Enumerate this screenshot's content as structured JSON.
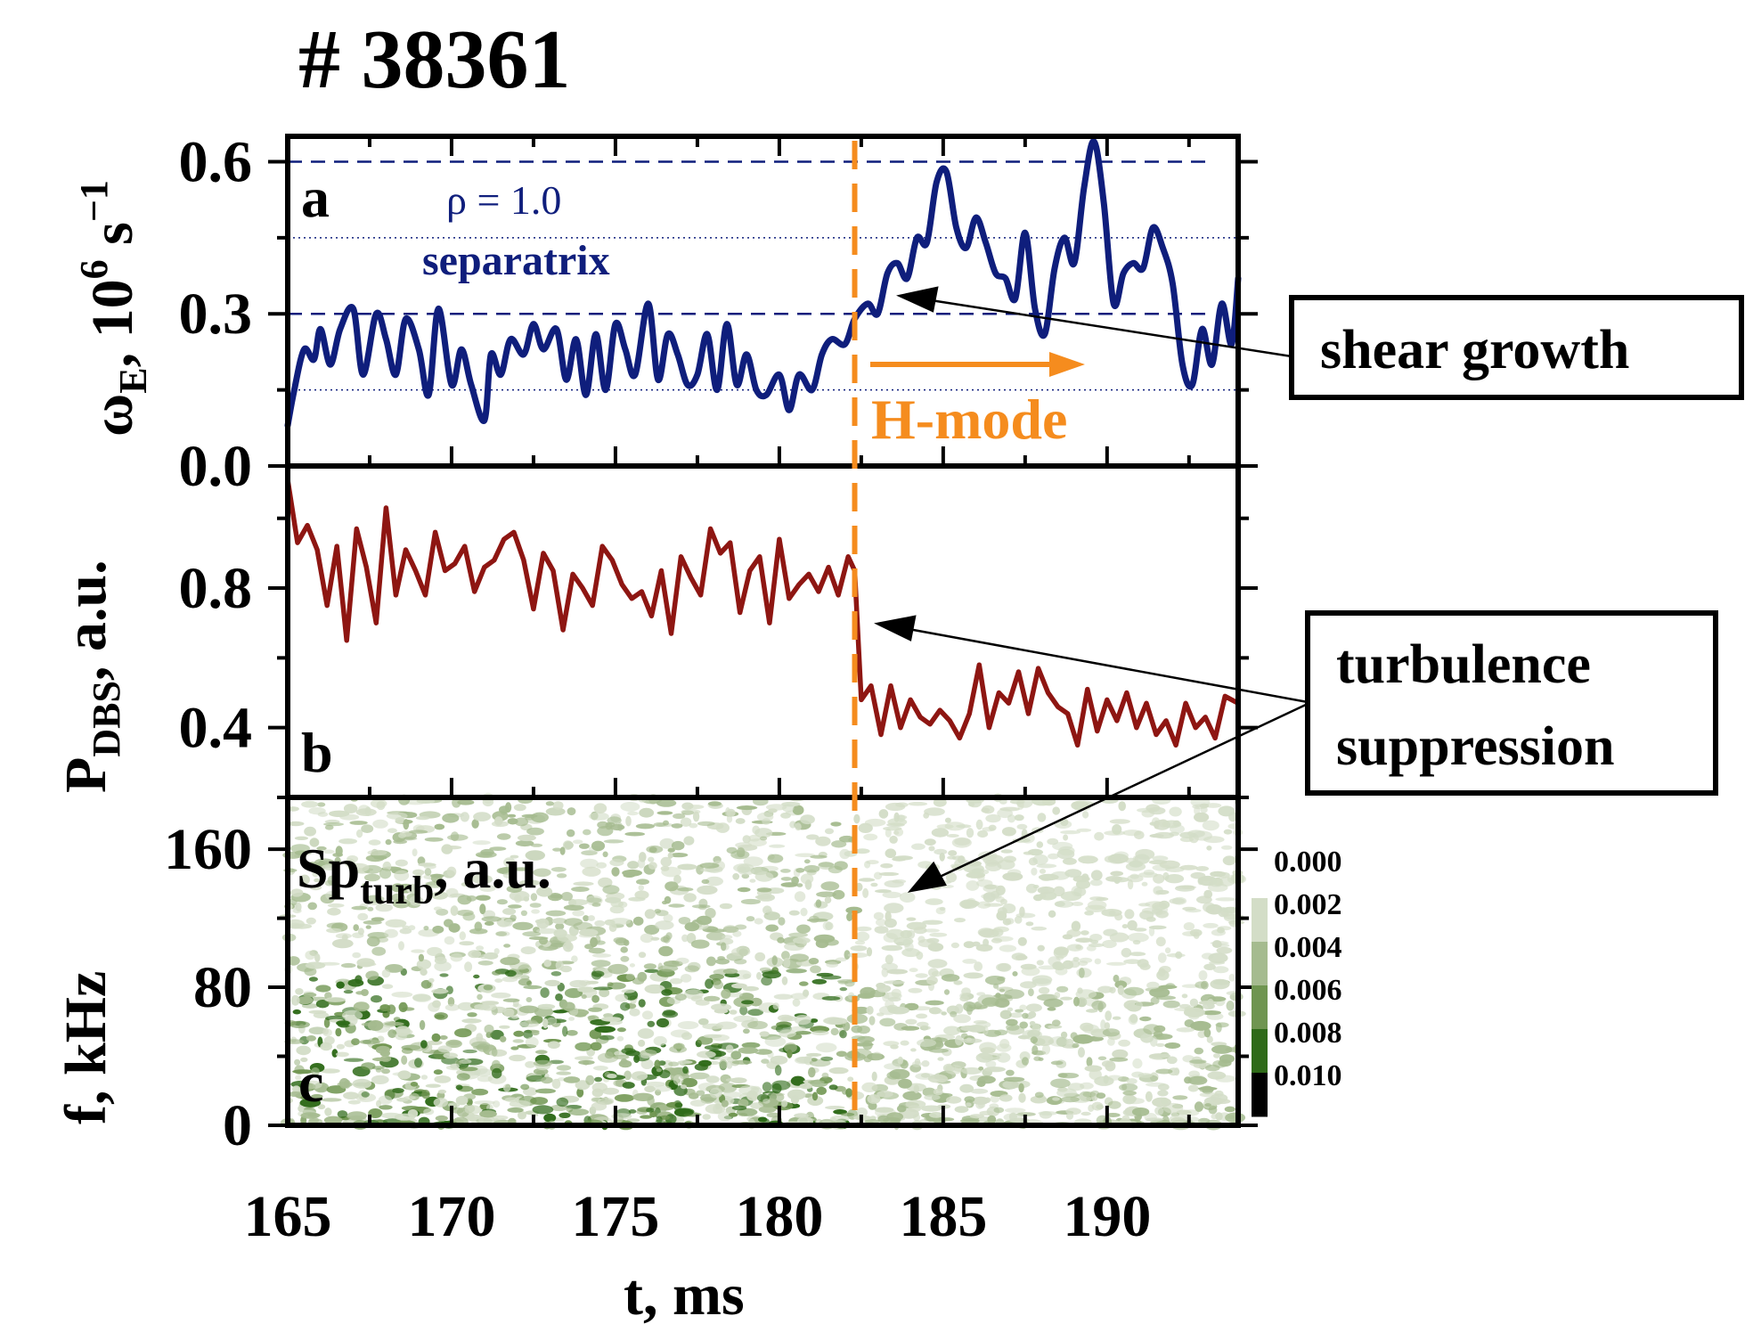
{
  "title": "# 38361",
  "colors": {
    "omega": "#0f1e7c",
    "pdbs": "#8e1612",
    "hmode": "#f58c1e",
    "axis": "#000000",
    "spectrogram_palette": [
      "#ffffff",
      "#d3ddc7",
      "#a5bb8f",
      "#6f9550",
      "#2e6a18",
      "#000000"
    ]
  },
  "x_axis": {
    "label": "t, ms",
    "ticks": [
      "165",
      "170",
      "175",
      "180",
      "185",
      "190"
    ],
    "range": [
      165,
      194
    ]
  },
  "panels": {
    "a": {
      "letter": "a",
      "ylabel_main": "ω",
      "ylabel_sub": "E",
      "ylabel_rest": ", 10",
      "ylabel_sup": "6",
      "ylabel_unit": " s",
      "ylabel_unit_sup": "−1",
      "yticks": [
        "0.0",
        "0.3",
        "0.6"
      ],
      "annotation_rho": "ρ = 1.0",
      "annotation_sep": "separatrix"
    },
    "b": {
      "letter": "b",
      "ylabel_main": "P",
      "ylabel_sub": "DBS",
      "ylabel_rest": ", a.u.",
      "yticks": [
        "0.4",
        "0.8"
      ]
    },
    "c": {
      "letter": "c",
      "ylabel": "f, kHz",
      "yticks": [
        "0",
        "80",
        "160"
      ],
      "label_main": "Sp",
      "label_sub": "turb",
      "label_rest": ", a.u."
    }
  },
  "annotations": {
    "hmode": "H-mode",
    "shear_growth": "shear growth",
    "turb_line1": "turbulence",
    "turb_line2": "suppression"
  },
  "colorbar": {
    "levels": [
      "0.000",
      "0.002",
      "0.004",
      "0.006",
      "0.008",
      "0.010"
    ]
  },
  "chart_data": [
    {
      "type": "line",
      "panel": "a",
      "ylabel": "ωE, 10^6 s^-1",
      "xlabel": "t, ms",
      "xlim": [
        165,
        194
      ],
      "ylim": [
        0.0,
        0.65
      ],
      "hlines_dashed": [
        0.3,
        0.6
      ],
      "hlines_dotted": [
        0.15,
        0.45
      ],
      "vline": 182.3,
      "grid": false,
      "series": [
        {
          "x": [
            165.0,
            165.2,
            165.5,
            165.8,
            166.0,
            166.3,
            166.6,
            167.0,
            167.3,
            167.7,
            168.0,
            168.3,
            168.6,
            169.0,
            169.3,
            169.6,
            170.0,
            170.3,
            170.6,
            171.0,
            171.2,
            171.5,
            171.8,
            172.2,
            172.5,
            172.8,
            173.2,
            173.5,
            173.8,
            174.1,
            174.4,
            174.7,
            175.0,
            175.3,
            175.6,
            176.0,
            176.3,
            176.6,
            176.9,
            177.2,
            177.5,
            177.8,
            178.1,
            178.4,
            178.7,
            179.0,
            179.3,
            179.6,
            180.0,
            180.3,
            180.6,
            181.0,
            181.3,
            181.6,
            182.0,
            182.3,
            182.7,
            183.0,
            183.3,
            183.6,
            183.9,
            184.2,
            184.5,
            184.8,
            185.1,
            185.4,
            185.7,
            186.0,
            186.3,
            186.6,
            186.9,
            187.2,
            187.5,
            187.8,
            188.1,
            188.4,
            188.7,
            189.0,
            189.3,
            189.6,
            189.9,
            190.2,
            190.5,
            190.8,
            191.1,
            191.4,
            191.7,
            192.0,
            192.3,
            192.6,
            192.9,
            193.2,
            193.5,
            193.8,
            194.0
          ],
          "values": [
            0.08,
            0.15,
            0.23,
            0.21,
            0.27,
            0.2,
            0.27,
            0.31,
            0.18,
            0.3,
            0.25,
            0.18,
            0.29,
            0.23,
            0.14,
            0.31,
            0.16,
            0.23,
            0.16,
            0.09,
            0.22,
            0.18,
            0.25,
            0.22,
            0.28,
            0.23,
            0.27,
            0.17,
            0.25,
            0.14,
            0.26,
            0.15,
            0.28,
            0.23,
            0.18,
            0.32,
            0.17,
            0.26,
            0.22,
            0.16,
            0.18,
            0.26,
            0.15,
            0.28,
            0.16,
            0.22,
            0.15,
            0.14,
            0.18,
            0.11,
            0.18,
            0.15,
            0.22,
            0.25,
            0.24,
            0.29,
            0.32,
            0.3,
            0.38,
            0.4,
            0.37,
            0.45,
            0.44,
            0.56,
            0.58,
            0.47,
            0.43,
            0.49,
            0.44,
            0.38,
            0.37,
            0.33,
            0.46,
            0.31,
            0.26,
            0.39,
            0.45,
            0.4,
            0.55,
            0.64,
            0.52,
            0.32,
            0.38,
            0.4,
            0.39,
            0.47,
            0.43,
            0.36,
            0.2,
            0.16,
            0.27,
            0.2,
            0.32,
            0.24,
            0.37
          ]
        }
      ]
    },
    {
      "type": "line",
      "panel": "b",
      "ylabel": "PDBS, a.u.",
      "xlabel": "t, ms",
      "xlim": [
        165,
        194
      ],
      "ylim": [
        0.2,
        1.15
      ],
      "vline": 182.3,
      "grid": false,
      "series": [
        {
          "x": [
            165.0,
            165.3,
            165.6,
            165.9,
            166.2,
            166.5,
            166.8,
            167.1,
            167.4,
            167.7,
            168.0,
            168.3,
            168.6,
            168.9,
            169.2,
            169.5,
            169.8,
            170.1,
            170.4,
            170.7,
            171.0,
            171.3,
            171.6,
            171.9,
            172.2,
            172.5,
            172.8,
            173.1,
            173.4,
            173.7,
            174.0,
            174.3,
            174.6,
            174.9,
            175.2,
            175.5,
            175.8,
            176.1,
            176.4,
            176.7,
            177.0,
            177.3,
            177.6,
            177.9,
            178.2,
            178.5,
            178.8,
            179.1,
            179.4,
            179.7,
            180.0,
            180.3,
            180.6,
            180.9,
            181.2,
            181.5,
            181.8,
            182.1,
            182.3,
            182.5,
            182.8,
            183.1,
            183.4,
            183.7,
            184.0,
            184.3,
            184.6,
            184.9,
            185.2,
            185.5,
            185.8,
            186.1,
            186.4,
            186.7,
            187.0,
            187.3,
            187.6,
            187.9,
            188.2,
            188.5,
            188.8,
            189.1,
            189.4,
            189.7,
            190.0,
            190.3,
            190.6,
            190.9,
            191.2,
            191.5,
            191.8,
            192.1,
            192.4,
            192.7,
            193.0,
            193.3,
            193.6,
            194.0
          ],
          "values": [
            1.11,
            0.93,
            0.98,
            0.91,
            0.75,
            0.92,
            0.65,
            0.97,
            0.86,
            0.7,
            1.03,
            0.78,
            0.91,
            0.85,
            0.78,
            0.96,
            0.85,
            0.87,
            0.92,
            0.79,
            0.86,
            0.88,
            0.94,
            0.96,
            0.88,
            0.74,
            0.9,
            0.85,
            0.68,
            0.84,
            0.8,
            0.75,
            0.92,
            0.88,
            0.81,
            0.77,
            0.79,
            0.72,
            0.85,
            0.67,
            0.89,
            0.83,
            0.78,
            0.97,
            0.9,
            0.93,
            0.73,
            0.85,
            0.89,
            0.7,
            0.94,
            0.77,
            0.81,
            0.84,
            0.79,
            0.86,
            0.78,
            0.89,
            0.85,
            0.48,
            0.52,
            0.38,
            0.52,
            0.4,
            0.48,
            0.43,
            0.41,
            0.45,
            0.42,
            0.37,
            0.44,
            0.58,
            0.4,
            0.5,
            0.47,
            0.56,
            0.44,
            0.57,
            0.5,
            0.46,
            0.44,
            0.35,
            0.51,
            0.39,
            0.48,
            0.42,
            0.5,
            0.4,
            0.47,
            0.38,
            0.42,
            0.35,
            0.47,
            0.4,
            0.43,
            0.37,
            0.49,
            0.47
          ]
        }
      ]
    },
    {
      "type": "heatmap",
      "panel": "c",
      "ylabel": "f, kHz",
      "xlabel": "t, ms",
      "xlim": [
        165,
        194
      ],
      "ylim": [
        0,
        190
      ],
      "color_levels": [
        0.0,
        0.002,
        0.004,
        0.006,
        0.008,
        0.01
      ],
      "description_levels": {
        "before_hmode_low_freq": 0.008,
        "before_hmode_high_freq": 0.004,
        "after_hmode_low_freq": 0.004,
        "after_hmode_high_freq": 0.002
      }
    }
  ]
}
